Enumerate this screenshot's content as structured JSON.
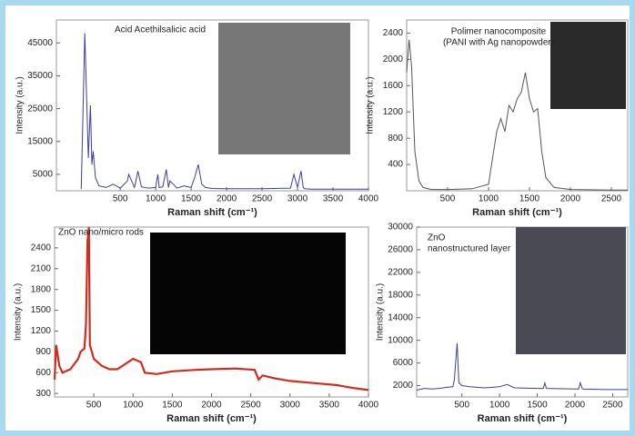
{
  "chart_data": [
    {
      "type": "line",
      "title": [
        "Acid Acethilsalicic acid"
      ],
      "x_label": "Raman shift (cm⁻¹)",
      "y_label": "Intensity (a.u.)",
      "xlim": [
        -400,
        4000
      ],
      "ylim": [
        0,
        52000
      ],
      "xticks": [
        500,
        1000,
        1500,
        2000,
        2500,
        3000,
        3500,
        4000
      ],
      "yticks": [
        5000,
        15000,
        25000,
        35000,
        45000
      ],
      "series": [
        {
          "color": "#3d3d9e",
          "x": [
            -50,
            0,
            50,
            80,
            100,
            120,
            150,
            200,
            300,
            400,
            500,
            600,
            620,
            700,
            750,
            800,
            900,
            1000,
            1030,
            1050,
            1100,
            1150,
            1180,
            1200,
            1250,
            1300,
            1400,
            1500,
            1550,
            1600,
            1650,
            1700,
            1800,
            2000,
            2500,
            2900,
            2950,
            3000,
            3050,
            3080,
            3100,
            3200,
            3500,
            4000
          ],
          "values": [
            500,
            48000,
            10000,
            26000,
            8000,
            12000,
            4000,
            1500,
            1000,
            2000,
            800,
            3000,
            5000,
            1000,
            6000,
            1200,
            800,
            1000,
            5000,
            1000,
            1200,
            6500,
            1000,
            3000,
            2000,
            800,
            1500,
            1000,
            4000,
            8000,
            2000,
            1000,
            700,
            600,
            600,
            800,
            5000,
            1000,
            6000,
            1000,
            600,
            500,
            500,
            500
          ]
        }
      ]
    },
    {
      "type": "line",
      "title": [
        "Polimer nanocomposite",
        "(PANI with Ag nanopowder)"
      ],
      "x_label": "Raman shift (cm⁻¹)",
      "y_label": "Intensity (a.u.)",
      "xlim": [
        0,
        2700
      ],
      "ylim": [
        0,
        2600
      ],
      "xticks": [
        500,
        1000,
        1500,
        2000,
        2500
      ],
      "yticks": [
        400,
        800,
        1200,
        1600,
        2000,
        2400
      ],
      "series": [
        {
          "color": "#555555",
          "x": [
            0,
            30,
            60,
            100,
            150,
            200,
            300,
            500,
            800,
            1000,
            1050,
            1100,
            1150,
            1200,
            1250,
            1300,
            1350,
            1400,
            1450,
            1500,
            1550,
            1600,
            1650,
            1700,
            1800,
            2000,
            2500,
            2700
          ],
          "values": [
            1800,
            2300,
            1900,
            600,
            150,
            50,
            20,
            20,
            30,
            100,
            500,
            900,
            1100,
            900,
            1300,
            1200,
            1400,
            1500,
            1800,
            1400,
            1200,
            1250,
            600,
            200,
            50,
            20,
            10,
            10
          ]
        }
      ]
    },
    {
      "type": "line",
      "title": [
        "ZnO nano/micro rods"
      ],
      "x_label": "Raman shift (cm⁻¹)",
      "y_label": "Intensity (a.u.)",
      "xlim": [
        0,
        4000
      ],
      "ylim": [
        250,
        2700
      ],
      "xticks": [
        500,
        1000,
        1500,
        2000,
        2500,
        3000,
        3500,
        4000
      ],
      "yticks": [
        300,
        600,
        900,
        1200,
        1500,
        1800,
        2100,
        2400
      ],
      "series": [
        {
          "color": "#d42a1e",
          "x": [
            0,
            20,
            60,
            100,
            200,
            300,
            330,
            380,
            400,
            420,
            437,
            450,
            500,
            600,
            700,
            800,
            1000,
            1100,
            1150,
            1300,
            1500,
            1800,
            2000,
            2300,
            2550,
            2600,
            2650,
            2800,
            3000,
            3300,
            3600,
            3800,
            4000
          ],
          "values": [
            500,
            1000,
            700,
            600,
            650,
            800,
            900,
            950,
            1300,
            2500,
            2700,
            1000,
            800,
            700,
            650,
            650,
            800,
            750,
            600,
            580,
            620,
            640,
            650,
            660,
            640,
            500,
            560,
            520,
            480,
            450,
            420,
            380,
            350
          ]
        }
      ]
    },
    {
      "type": "line",
      "title": [
        "ZnO",
        "nanostructured layer"
      ],
      "x_label": "Raman shift (cm⁻¹)",
      "y_label": "Intensity (a.u.)",
      "xlim": [
        -100,
        2700
      ],
      "ylim": [
        0,
        30000
      ],
      "xticks": [
        500,
        1000,
        1500,
        2000,
        2500
      ],
      "yticks": [
        2000,
        6000,
        10000,
        14000,
        18000,
        22000,
        26000,
        30000
      ],
      "series": [
        {
          "color": "#3d3d9e",
          "x": [
            -100,
            0,
            100,
            200,
            300,
            380,
            400,
            437,
            460,
            500,
            600,
            800,
            1000,
            1100,
            1200,
            1500,
            1580,
            1600,
            1620,
            2000,
            2050,
            2070,
            2100,
            2400,
            2700
          ],
          "values": [
            1200,
            1500,
            1400,
            1500,
            1700,
            1800,
            3000,
            9500,
            2500,
            2000,
            1800,
            1600,
            1800,
            2200,
            1600,
            1500,
            1500,
            2500,
            1500,
            1400,
            1400,
            2500,
            1400,
            1300,
            1300
          ]
        }
      ]
    }
  ]
}
